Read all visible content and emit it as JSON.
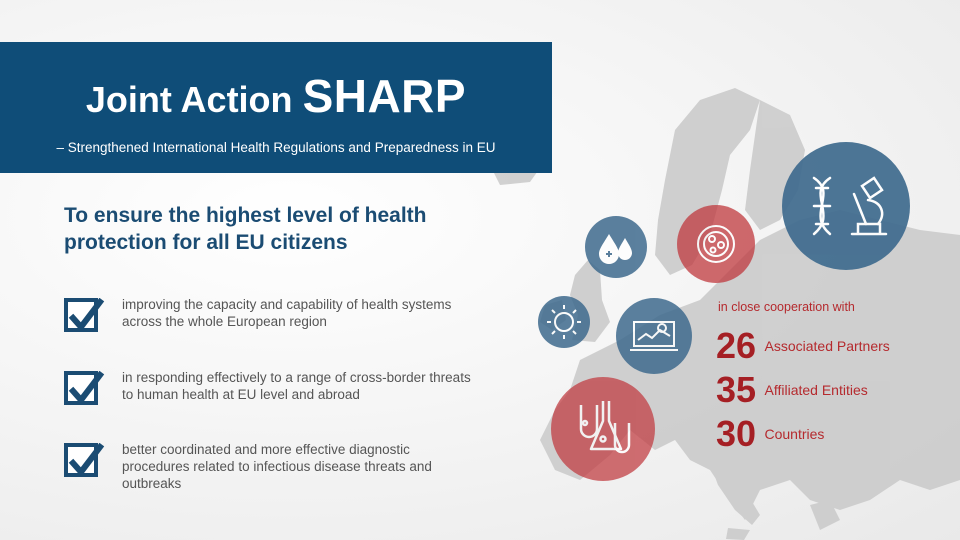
{
  "header": {
    "title_prefix": "Joint Action",
    "title_main": "SHARP",
    "subtitle": "– Strengthened International Health Regulations and Preparedness in EU"
  },
  "headline": "To ensure the highest level of health protection for all EU citizens",
  "bullets": [
    "improving the capacity and capability of health systems across the whole European region",
    "in responding effectively to a range of cross-border threats to human health at EU level  and abroad",
    "better coordinated and more effective diagnostic procedures related to infectious disease threats and outbreaks"
  ],
  "cooperation": {
    "intro": "in close cooperation  with",
    "stats": [
      {
        "number": "26",
        "label": "Associated Partners"
      },
      {
        "number": "35",
        "label": "Affiliated Entities"
      },
      {
        "number": "30",
        "label": "Countries"
      }
    ]
  },
  "colors": {
    "navy": "#0f4d78",
    "accent_red": "#a51f24",
    "circle_blue": "#3f6b8e",
    "circle_red": "#c0393e",
    "map_gray": "#c9c9c9"
  },
  "icons": [
    "dna-microscope-icon",
    "bacteria-dish-icon",
    "blood-drops-icon",
    "virus-icon",
    "laptop-chart-icon",
    "lab-flasks-icon"
  ]
}
